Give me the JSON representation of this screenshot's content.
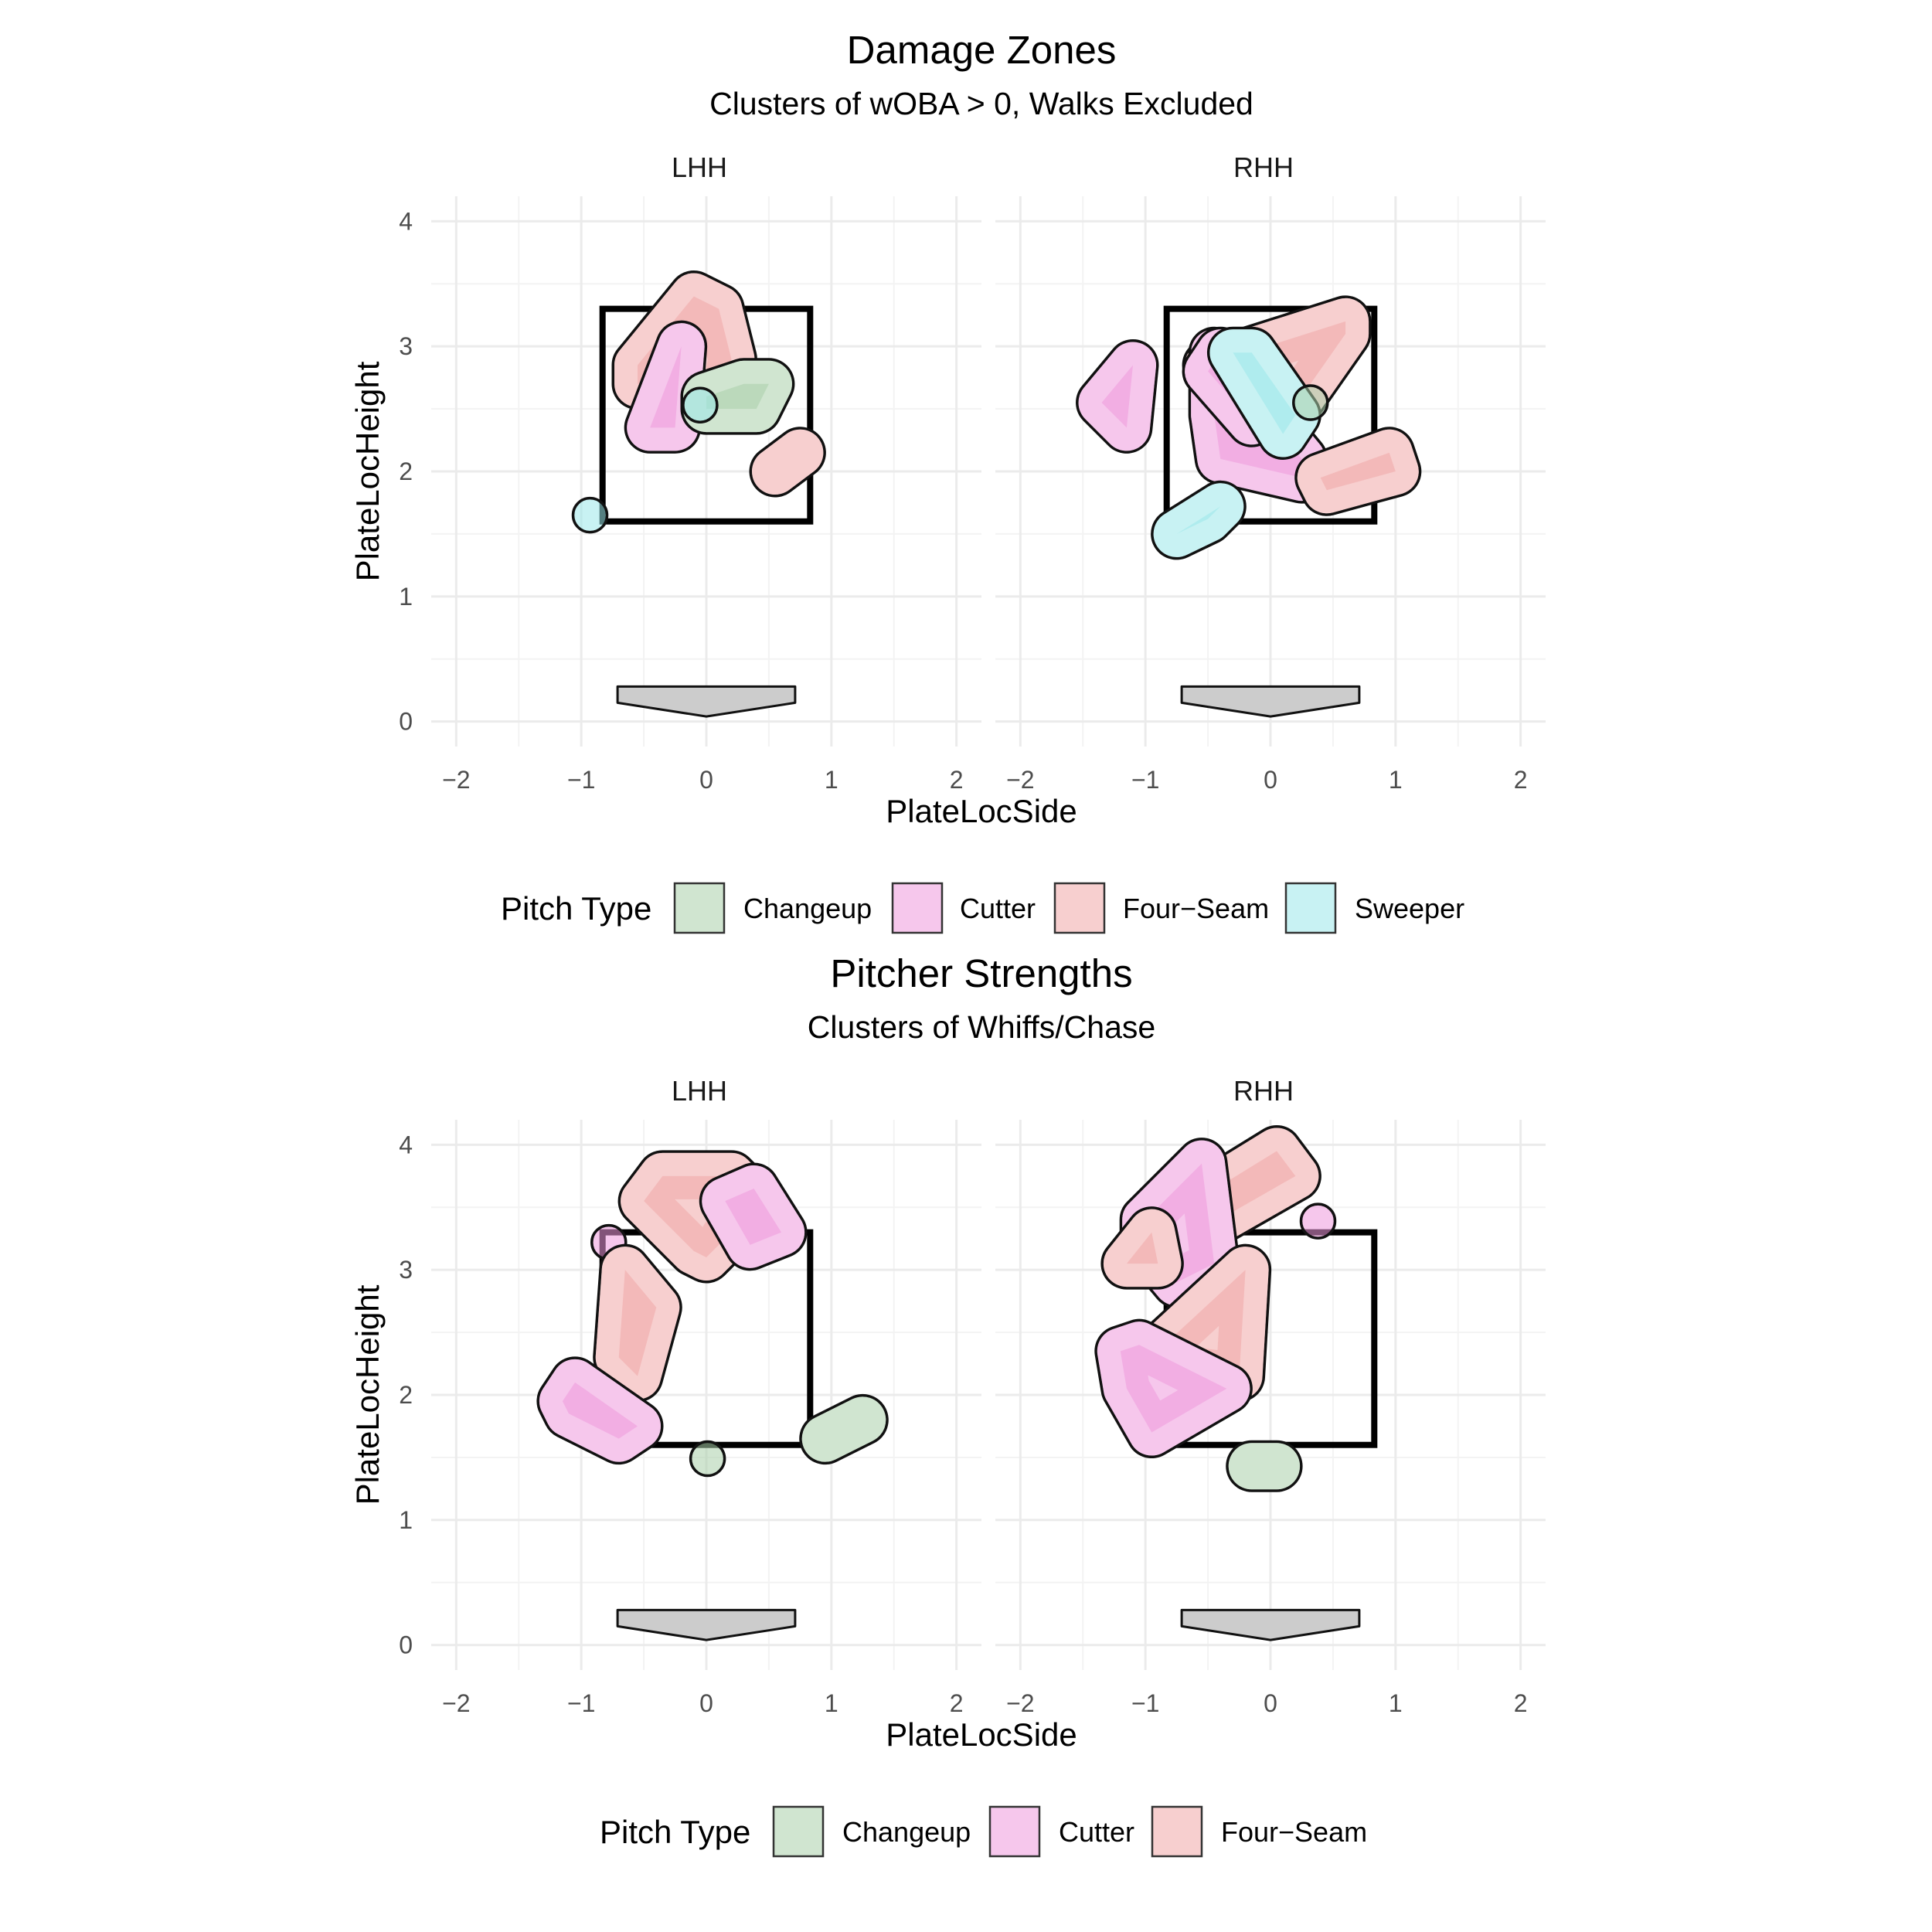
{
  "chart_data": [
    {
      "type": "scatter",
      "chart_kind": "faceted convex-hull cluster plot",
      "title": "Damage Zones",
      "subtitle": "Clusters of wOBA > 0, Walks Excluded",
      "xlabel": "PlateLocSide",
      "ylabel": "PlateLocHeight",
      "xlim": [
        -2.2,
        2.2
      ],
      "ylim": [
        -0.2,
        4.2
      ],
      "x_ticks": [
        -2,
        -1,
        0,
        1,
        2
      ],
      "y_ticks": [
        0,
        1,
        2,
        3,
        4
      ],
      "x_tick_labels": [
        "−2",
        "−1",
        "0",
        "1",
        "2"
      ],
      "y_tick_labels": [
        "0",
        "1",
        "2",
        "3",
        "4"
      ],
      "strike_zone": {
        "x": [
          -0.83,
          0.83
        ],
        "y": [
          1.6,
          3.3
        ]
      },
      "home_plate": [
        [
          -0.71,
          0.28
        ],
        [
          0.71,
          0.28
        ],
        [
          0.71,
          0.15
        ],
        [
          0,
          0.04
        ],
        [
          -0.71,
          0.15
        ]
      ],
      "legend": {
        "title": "Pitch Type",
        "position": "bottom",
        "entries": [
          {
            "label": "Changeup",
            "color": "#a9d0a9"
          },
          {
            "label": "Cutter",
            "color": "#ee99dd"
          },
          {
            "label": "Four−Seam",
            "color": "#f0a8a8"
          },
          {
            "label": "Sweeper",
            "color": "#9ae8ea"
          }
        ]
      },
      "facets": [
        {
          "label": "LHH",
          "clusters": [
            {
              "pitch": "Four−Seam",
              "points": [
                [
                  -0.55,
                  2.85
                ],
                [
                  -0.1,
                  3.4
                ],
                [
                  0.1,
                  3.3
                ],
                [
                  0.2,
                  2.9
                ],
                [
                  0.15,
                  2.6
                ],
                [
                  -0.2,
                  2.6
                ],
                [
                  -0.55,
                  2.7
                ]
              ]
            },
            {
              "pitch": "Cutter",
              "points": [
                [
                  -0.45,
                  2.35
                ],
                [
                  -0.2,
                  3.0
                ],
                [
                  -0.25,
                  2.35
                ]
              ]
            },
            {
              "pitch": "Changeup",
              "points": [
                [
                  0.0,
                  2.5
                ],
                [
                  0.0,
                  2.6
                ],
                [
                  0.3,
                  2.7
                ],
                [
                  0.5,
                  2.7
                ],
                [
                  0.4,
                  2.5
                ]
              ]
            },
            {
              "pitch": "Sweeper",
              "points": [
                [
                  -0.05,
                  2.53
                ]
              ]
            },
            {
              "pitch": "Four−Seam",
              "points": [
                [
                  0.55,
                  2.0
                ],
                [
                  0.75,
                  2.15
                ]
              ]
            },
            {
              "pitch": "Sweeper",
              "points": [
                [
                  -0.93,
                  1.65
                ]
              ]
            }
          ]
        },
        {
          "label": "RHH",
          "clusters": [
            {
              "pitch": "Cutter",
              "points": [
                [
                  -1.35,
                  2.55
                ],
                [
                  -1.1,
                  2.85
                ],
                [
                  -1.15,
                  2.35
                ]
              ]
            },
            {
              "pitch": "Four−Seam",
              "points": [
                [
                  -0.5,
                  2.85
                ],
                [
                  0.6,
                  3.2
                ],
                [
                  0.6,
                  3.1
                ],
                [
                  0.25,
                  2.6
                ],
                [
                  -0.35,
                  2.5
                ]
              ]
            },
            {
              "pitch": "Cutter",
              "points": [
                [
                  -0.45,
                  2.45
                ],
                [
                  -0.45,
                  2.95
                ],
                [
                  0.25,
                  2.1
                ],
                [
                  0.25,
                  1.95
                ],
                [
                  -0.4,
                  2.1
                ]
              ]
            },
            {
              "pitch": "Cutter",
              "points": [
                [
                  -0.5,
                  2.8
                ],
                [
                  -0.4,
                  2.95
                ],
                [
                  0.0,
                  2.5
                ],
                [
                  -0.15,
                  2.4
                ]
              ]
            },
            {
              "pitch": "Sweeper",
              "points": [
                [
                  -0.3,
                  2.95
                ],
                [
                  -0.15,
                  2.95
                ],
                [
                  0.2,
                  2.45
                ],
                [
                  0.1,
                  2.3
                ]
              ]
            },
            {
              "pitch": "Changeup",
              "points": [
                [
                  0.32,
                  2.55
                ]
              ]
            },
            {
              "pitch": "Four−Seam",
              "points": [
                [
                  0.4,
                  1.95
                ],
                [
                  0.95,
                  2.15
                ],
                [
                  1.0,
                  2.0
                ],
                [
                  0.45,
                  1.85
                ]
              ]
            },
            {
              "pitch": "Sweeper",
              "points": [
                [
                  -0.75,
                  1.5
                ],
                [
                  -0.4,
                  1.72
                ],
                [
                  -0.5,
                  1.62
                ]
              ]
            }
          ]
        }
      ]
    },
    {
      "type": "scatter",
      "chart_kind": "faceted convex-hull cluster plot",
      "title": "Pitcher Strengths",
      "subtitle": "Clusters of Whiffs/Chase",
      "xlabel": "PlateLocSide",
      "ylabel": "PlateLocHeight",
      "xlim": [
        -2.2,
        2.2
      ],
      "ylim": [
        -0.2,
        4.2
      ],
      "x_ticks": [
        -2,
        -1,
        0,
        1,
        2
      ],
      "y_ticks": [
        0,
        1,
        2,
        3,
        4
      ],
      "x_tick_labels": [
        "−2",
        "−1",
        "0",
        "1",
        "2"
      ],
      "y_tick_labels": [
        "0",
        "1",
        "2",
        "3",
        "4"
      ],
      "strike_zone": {
        "x": [
          -0.83,
          0.83
        ],
        "y": [
          1.6,
          3.3
        ]
      },
      "home_plate": [
        [
          -0.71,
          0.28
        ],
        [
          0.71,
          0.28
        ],
        [
          0.71,
          0.15
        ],
        [
          0,
          0.04
        ],
        [
          -0.71,
          0.15
        ]
      ],
      "legend": {
        "title": "Pitch Type",
        "position": "bottom",
        "entries": [
          {
            "label": "Changeup",
            "color": "#a9d0a9"
          },
          {
            "label": "Cutter",
            "color": "#ee99dd"
          },
          {
            "label": "Four−Seam",
            "color": "#f0a8a8"
          }
        ]
      },
      "facets": [
        {
          "label": "LHH",
          "clusters": [
            {
              "pitch": "Four−Seam",
              "points": [
                [
                  -0.5,
                  3.55
                ],
                [
                  -0.35,
                  3.75
                ],
                [
                  0.2,
                  3.75
                ],
                [
                  0.35,
                  3.6
                ],
                [
                  0.1,
                  3.2
                ],
                [
                  0.0,
                  3.1
                ],
                [
                  -0.1,
                  3.15
                ]
              ]
            },
            {
              "pitch": "Cutter",
              "points": [
                [
                  0.15,
                  3.55
                ],
                [
                  0.38,
                  3.65
                ],
                [
                  0.6,
                  3.3
                ],
                [
                  0.35,
                  3.2
                ]
              ]
            },
            {
              "pitch": "Cutter",
              "points": [
                [
                  -0.78,
                  3.22
                ]
              ]
            },
            {
              "pitch": "Four−Seam",
              "points": [
                [
                  -0.65,
                  3.0
                ],
                [
                  -0.4,
                  2.7
                ],
                [
                  -0.55,
                  2.15
                ],
                [
                  -0.7,
                  2.3
                ]
              ]
            },
            {
              "pitch": "Cutter",
              "points": [
                [
                  -1.15,
                  1.95
                ],
                [
                  -1.05,
                  2.1
                ],
                [
                  -0.55,
                  1.75
                ],
                [
                  -0.7,
                  1.65
                ],
                [
                  -1.1,
                  1.85
                ]
              ]
            },
            {
              "pitch": "Changeup",
              "points": [
                [
                  0.01,
                  1.49
                ]
              ]
            },
            {
              "pitch": "Changeup",
              "points": [
                [
                  0.95,
                  1.65
                ],
                [
                  1.25,
                  1.8
                ]
              ]
            }
          ]
        },
        {
          "label": "RHH",
          "clusters": [
            {
              "pitch": "Four−Seam",
              "points": [
                [
                  -0.6,
                  3.55
                ],
                [
                  0.05,
                  3.95
                ],
                [
                  0.2,
                  3.75
                ],
                [
                  -0.5,
                  3.35
                ]
              ]
            },
            {
              "pitch": "Cutter",
              "points": [
                [
                  -1.0,
                  3.4
                ],
                [
                  -0.55,
                  3.85
                ],
                [
                  -0.45,
                  3.05
                ],
                [
                  -0.75,
                  2.9
                ],
                [
                  -1.0,
                  3.2
                ]
              ]
            },
            {
              "pitch": "Four−Seam",
              "points": [
                [
                  -1.15,
                  3.05
                ],
                [
                  -0.95,
                  3.3
                ],
                [
                  -0.9,
                  3.05
                ]
              ]
            },
            {
              "pitch": "Cutter",
              "points": [
                [
                  0.38,
                  3.39
                ]
              ]
            },
            {
              "pitch": "Four−Seam",
              "points": [
                [
                  -0.85,
                  2.4
                ],
                [
                  -0.2,
                  3.0
                ],
                [
                  -0.25,
                  2.15
                ],
                [
                  -0.65,
                  2.2
                ]
              ]
            },
            {
              "pitch": "Cutter",
              "points": [
                [
                  -1.2,
                  2.35
                ],
                [
                  -1.05,
                  2.4
                ],
                [
                  -0.35,
                  2.05
                ],
                [
                  -0.95,
                  1.7
                ],
                [
                  -1.15,
                  2.05
                ]
              ]
            },
            {
              "pitch": "Changeup",
              "points": [
                [
                  -0.15,
                  1.43
                ],
                [
                  0.05,
                  1.43
                ]
              ]
            }
          ]
        }
      ]
    }
  ]
}
